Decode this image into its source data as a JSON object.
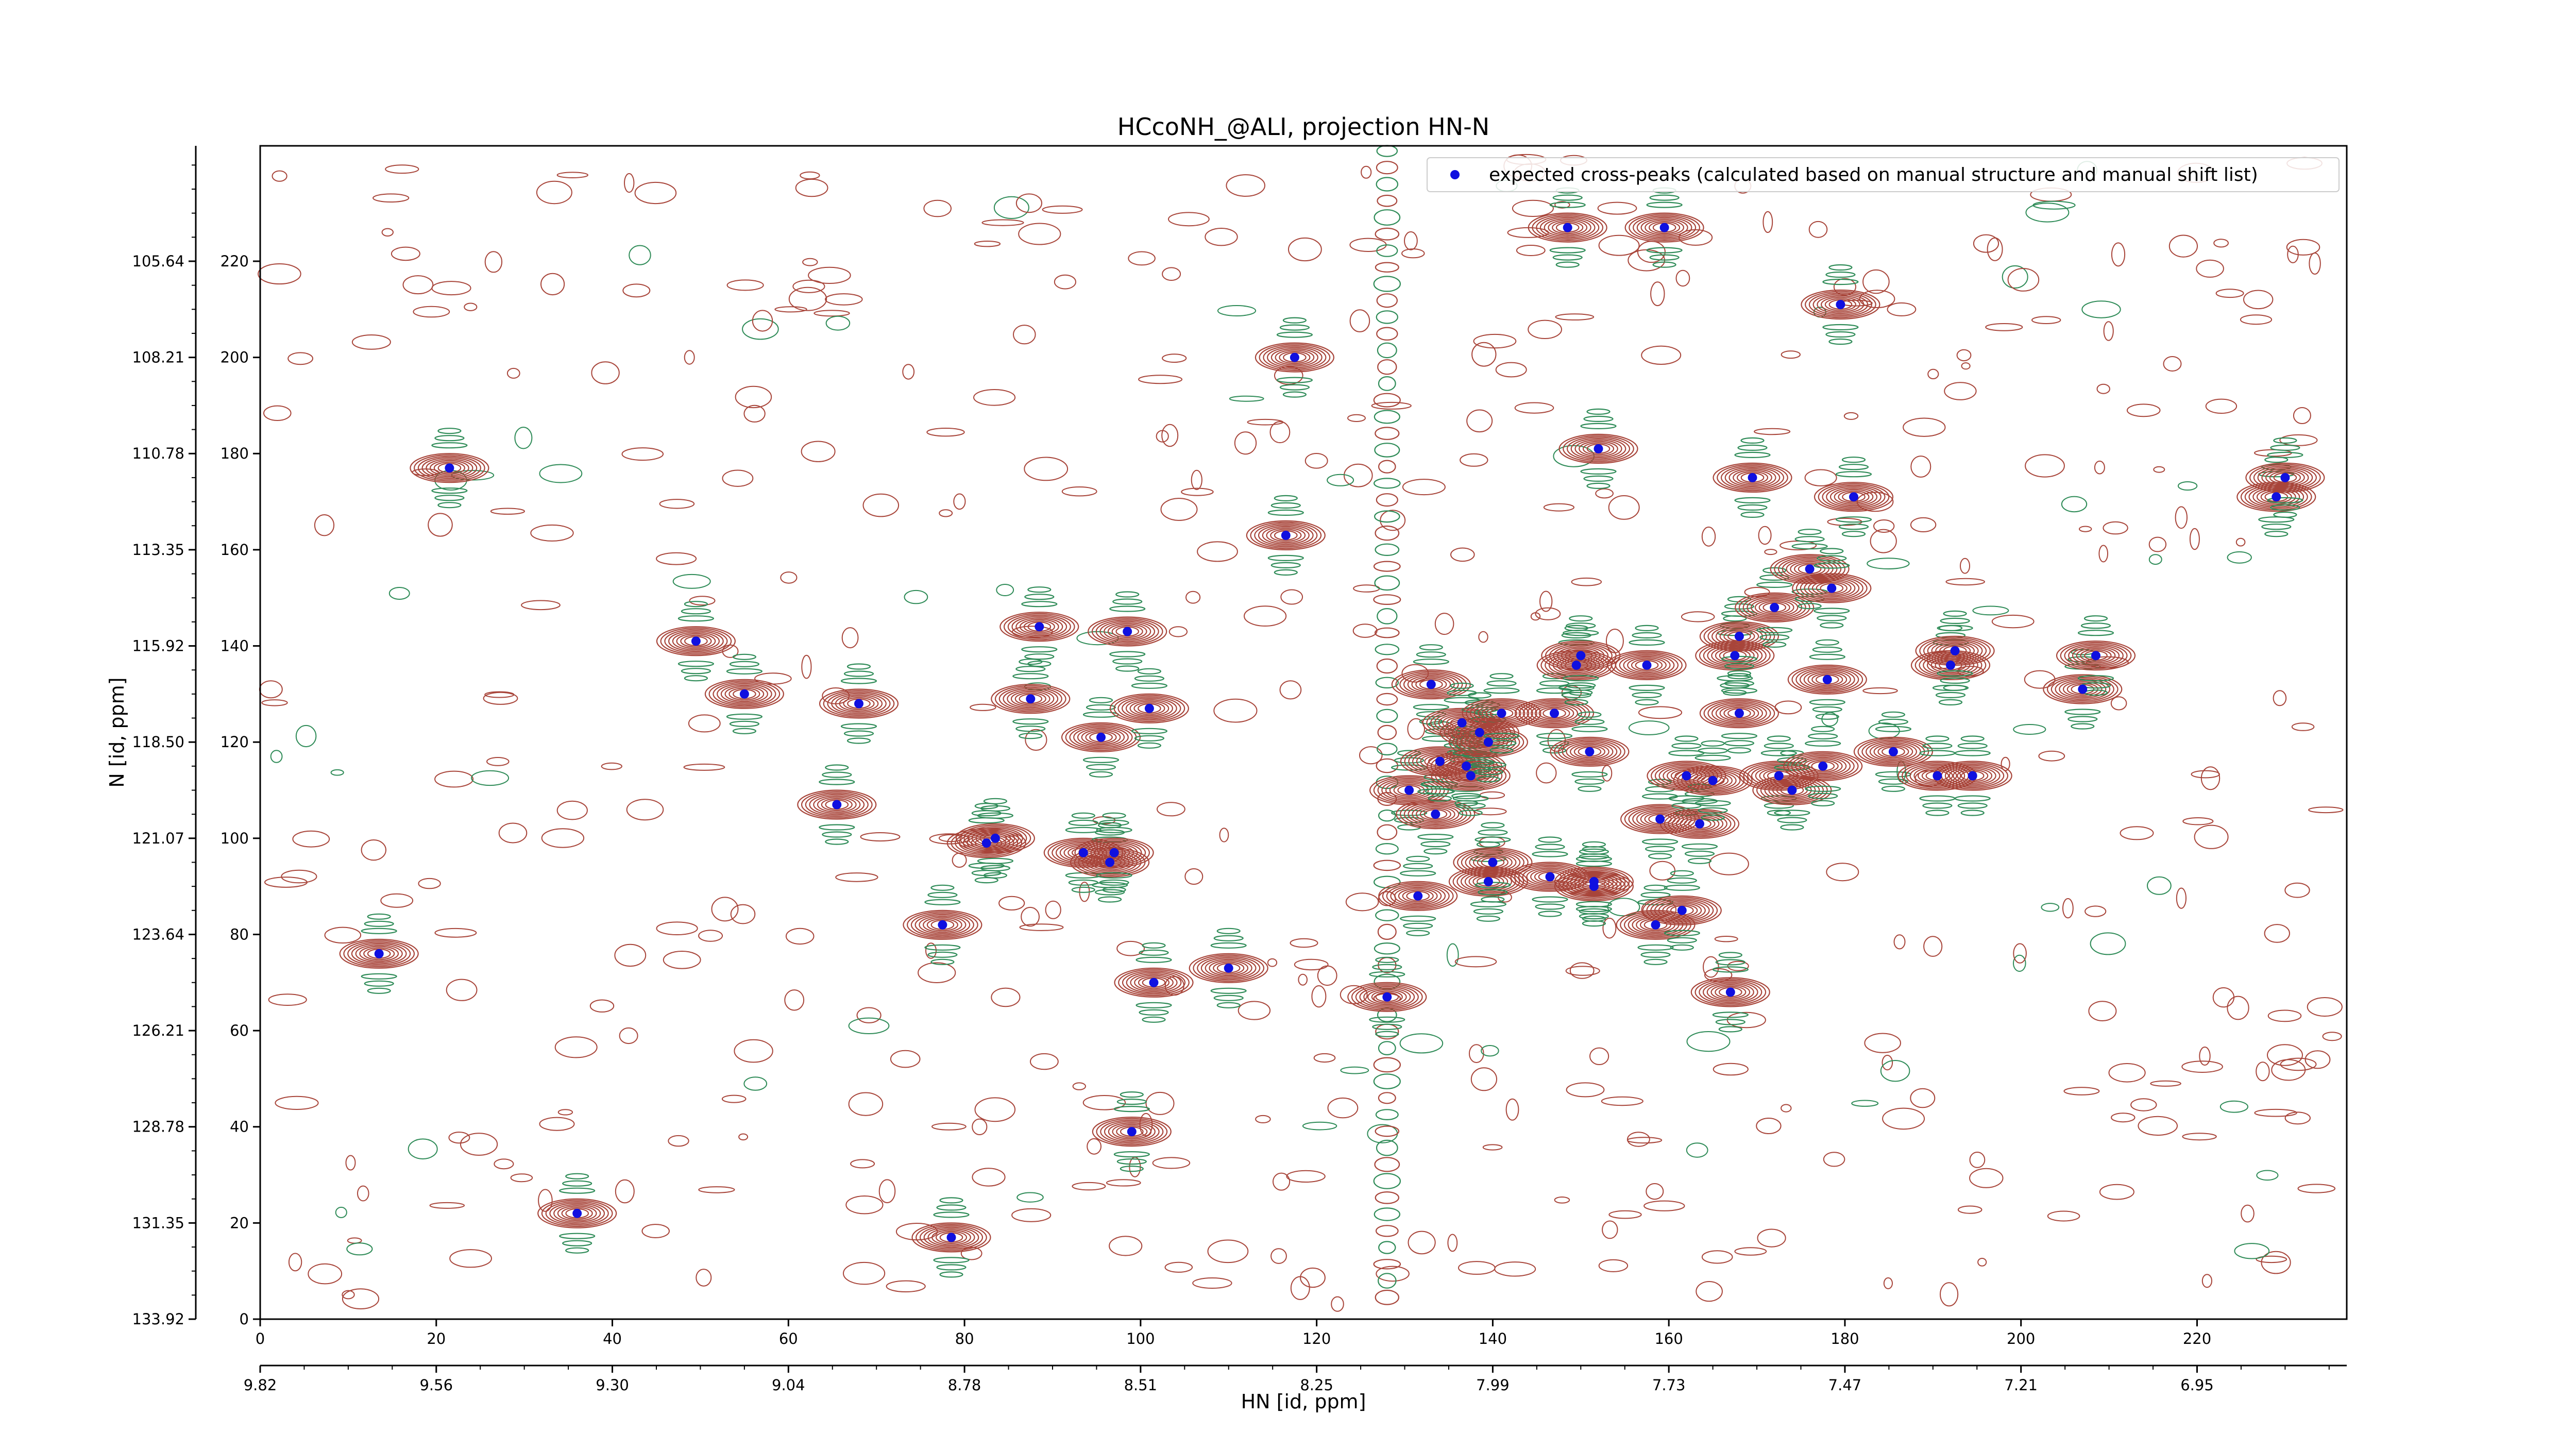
{
  "chart_data": {
    "type": "scatter",
    "title": "HCcoNH_@ALI, projection HN-N",
    "xlabel": "HN [id, ppm]",
    "ylabel": "N [id, ppm]",
    "x_index_range": [
      0,
      237
    ],
    "y_index_range": [
      0,
      244
    ],
    "x_index_ticks": [
      0,
      20,
      40,
      60,
      80,
      100,
      120,
      140,
      160,
      180,
      200,
      220
    ],
    "x_ppm_ticks": [
      {
        "index": 0,
        "label": "9.82"
      },
      {
        "index": 20,
        "label": "9.56"
      },
      {
        "index": 40,
        "label": "9.30"
      },
      {
        "index": 60,
        "label": "9.04"
      },
      {
        "index": 80,
        "label": "8.78"
      },
      {
        "index": 100,
        "label": "8.51"
      },
      {
        "index": 120,
        "label": "8.25"
      },
      {
        "index": 140,
        "label": "7.99"
      },
      {
        "index": 160,
        "label": "7.73"
      },
      {
        "index": 180,
        "label": "7.47"
      },
      {
        "index": 200,
        "label": "7.21"
      },
      {
        "index": 220,
        "label": "6.95"
      }
    ],
    "y_index_ticks": [
      0,
      20,
      40,
      60,
      80,
      100,
      120,
      140,
      160,
      180,
      200,
      220
    ],
    "y_ppm_ticks": [
      {
        "index": 220,
        "label": "105.64"
      },
      {
        "index": 200,
        "label": "108.21"
      },
      {
        "index": 180,
        "label": "110.78"
      },
      {
        "index": 160,
        "label": "113.35"
      },
      {
        "index": 140,
        "label": "115.92"
      },
      {
        "index": 120,
        "label": "118.50"
      },
      {
        "index": 100,
        "label": "121.07"
      },
      {
        "index": 80,
        "label": "123.64"
      },
      {
        "index": 60,
        "label": "126.21"
      },
      {
        "index": 40,
        "label": "128.78"
      },
      {
        "index": 20,
        "label": "131.35"
      },
      {
        "index": 0,
        "label": "133.92"
      }
    ],
    "legend": {
      "position": "top-right",
      "entries": [
        "expected cross-peaks (calculated based on manual structure and manual shift list)"
      ]
    },
    "series": [
      {
        "name": "expected cross-peaks (calculated based on manual structure and manual shift list)",
        "color": "#1010e0",
        "marker": "circle",
        "points": [
          [
            13.5,
            76
          ],
          [
            21.5,
            177
          ],
          [
            36,
            22
          ],
          [
            49.5,
            141
          ],
          [
            55,
            130
          ],
          [
            65.5,
            107
          ],
          [
            68,
            128
          ],
          [
            77.5,
            82
          ],
          [
            78.5,
            17
          ],
          [
            82.5,
            99
          ],
          [
            83.5,
            100
          ],
          [
            87.5,
            129
          ],
          [
            88.5,
            144
          ],
          [
            93.5,
            97
          ],
          [
            95.5,
            121
          ],
          [
            96.5,
            95
          ],
          [
            97,
            97
          ],
          [
            98.5,
            143
          ],
          [
            99,
            39
          ],
          [
            101,
            127
          ],
          [
            101.5,
            70
          ],
          [
            110,
            73
          ],
          [
            116.5,
            163
          ],
          [
            117.5,
            200
          ],
          [
            128,
            67
          ],
          [
            130.5,
            110
          ],
          [
            131.5,
            88
          ],
          [
            133,
            132
          ],
          [
            133.5,
            105
          ],
          [
            134,
            116
          ],
          [
            136.5,
            124
          ],
          [
            137,
            115
          ],
          [
            137.5,
            113
          ],
          [
            138.5,
            122
          ],
          [
            139.5,
            91
          ],
          [
            139.5,
            120
          ],
          [
            140,
            95
          ],
          [
            141,
            126
          ],
          [
            146.5,
            92
          ],
          [
            147,
            126
          ],
          [
            148.5,
            227
          ],
          [
            149.5,
            136
          ],
          [
            150,
            138
          ],
          [
            151,
            118
          ],
          [
            151.5,
            90
          ],
          [
            151.5,
            91
          ],
          [
            152,
            181
          ],
          [
            157.5,
            136
          ],
          [
            158.5,
            82
          ],
          [
            159,
            104
          ],
          [
            159.5,
            227
          ],
          [
            161.5,
            85
          ],
          [
            162,
            113
          ],
          [
            163.5,
            103
          ],
          [
            165,
            112
          ],
          [
            167,
            68
          ],
          [
            167.5,
            138
          ],
          [
            168,
            126
          ],
          [
            168,
            142
          ],
          [
            169.5,
            175
          ],
          [
            172,
            148
          ],
          [
            172.5,
            113
          ],
          [
            174,
            110
          ],
          [
            176,
            156
          ],
          [
            177.5,
            115
          ],
          [
            178,
            133
          ],
          [
            178.5,
            152
          ],
          [
            179.5,
            211
          ],
          [
            181,
            171
          ],
          [
            185.5,
            118
          ],
          [
            190.5,
            113
          ],
          [
            192,
            136
          ],
          [
            192.5,
            139
          ],
          [
            194.5,
            113
          ],
          [
            207,
            131
          ],
          [
            208.5,
            138
          ],
          [
            229,
            171
          ],
          [
            230,
            175
          ]
        ]
      }
    ]
  }
}
